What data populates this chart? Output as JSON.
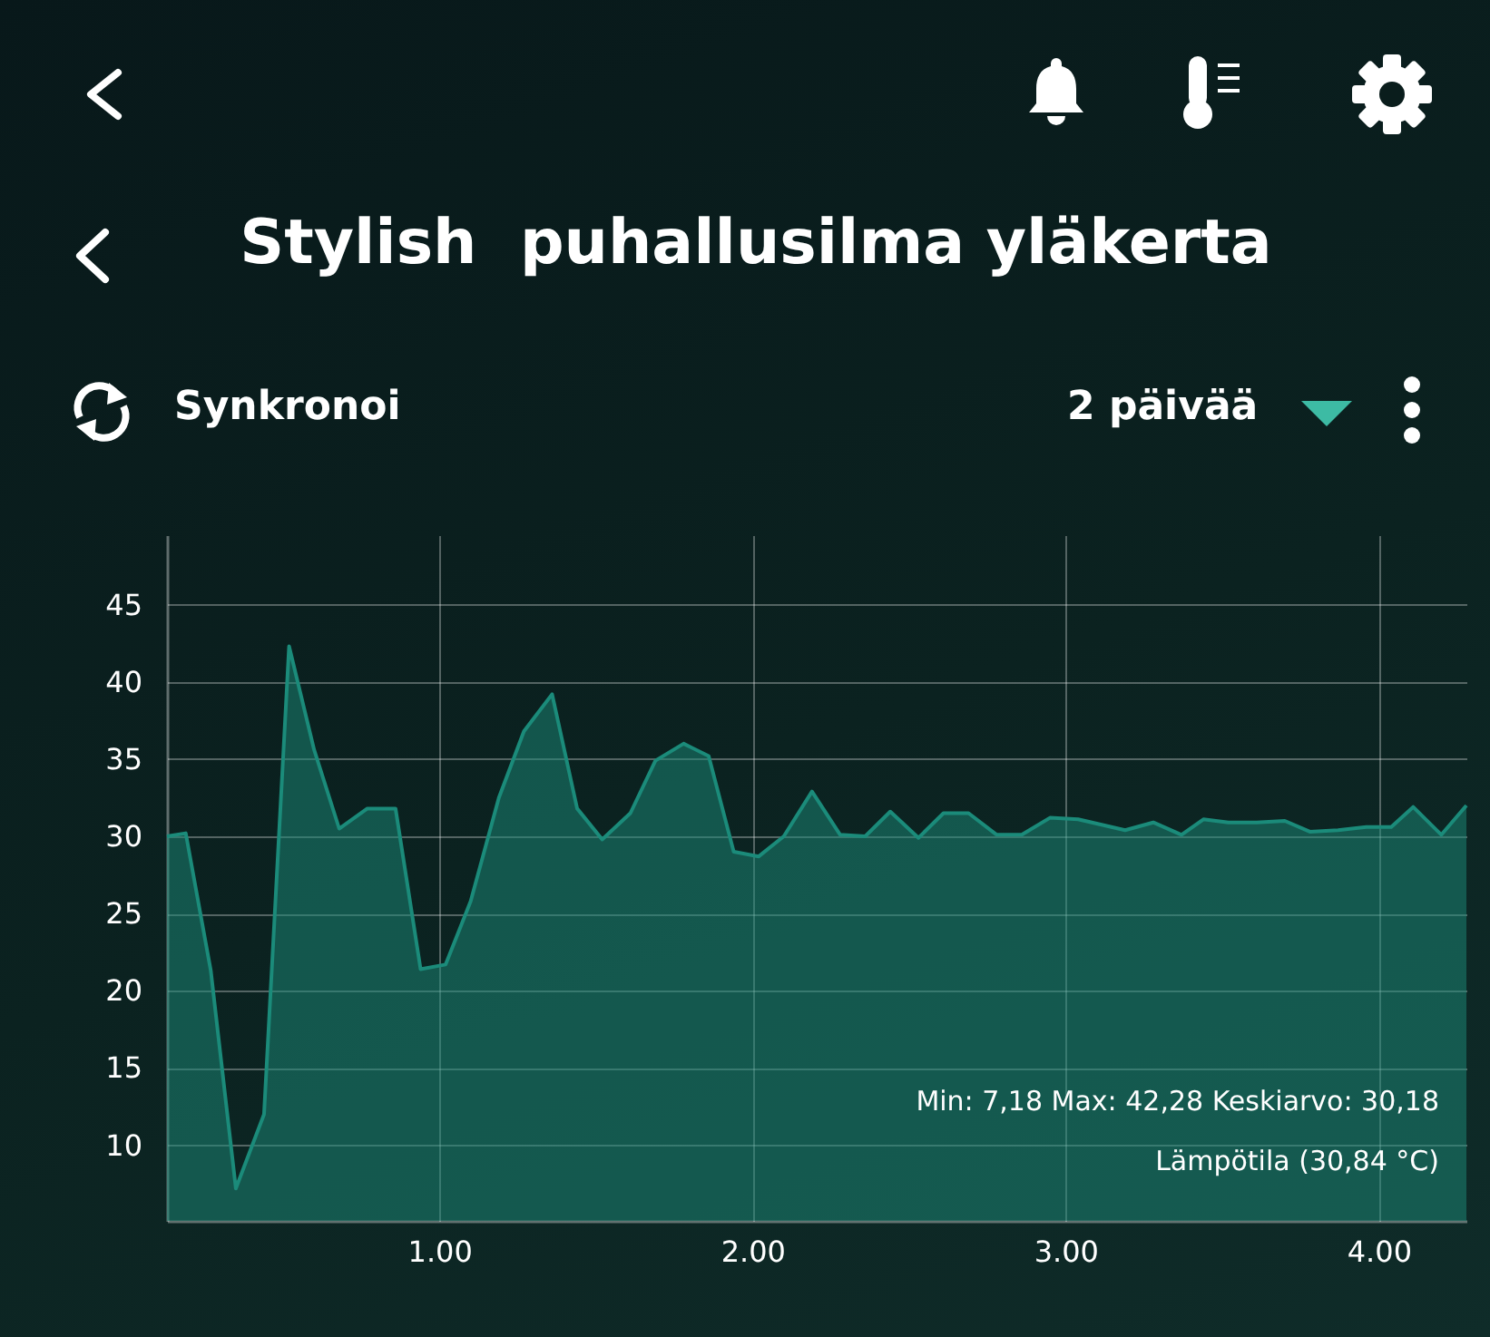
{
  "chart_data": {
    "type": "area",
    "title": "Stylish  puhallusilma yläkerta",
    "annotations": [
      "Synkronoi",
      "2 päivää",
      "Min: 7,18 Max: 42,28 Keskiarvo: 30,18",
      "Lämpötila (30,84 °C)"
    ],
    "x": [
      0.13,
      0.19,
      0.27,
      0.35,
      0.44,
      0.52,
      0.6,
      0.68,
      0.77,
      0.86,
      0.94,
      1.02,
      1.1,
      1.19,
      1.27,
      1.36,
      1.44,
      1.52,
      1.61,
      1.69,
      1.78,
      1.86,
      1.94,
      2.02,
      2.1,
      2.19,
      2.28,
      2.36,
      2.44,
      2.53,
      2.61,
      2.69,
      2.78,
      2.86,
      2.95,
      3.04,
      3.19,
      3.28,
      3.37,
      3.44,
      3.52,
      3.61,
      3.7,
      3.78,
      3.87,
      3.96,
      4.04,
      4.11,
      4.2,
      4.28
    ],
    "values": [
      30.0,
      30.2,
      21.3,
      7.2,
      12.0,
      42.3,
      35.6,
      30.5,
      31.8,
      31.8,
      21.4,
      21.7,
      25.8,
      32.5,
      36.8,
      39.2,
      31.8,
      29.8,
      31.5,
      34.9,
      36.0,
      35.2,
      29.0,
      28.7,
      30.0,
      32.9,
      30.1,
      30.0,
      31.6,
      29.9,
      31.5,
      31.5,
      30.1,
      30.1,
      31.2,
      31.1,
      30.4,
      30.9,
      30.1,
      31.1,
      30.9,
      30.9,
      31.0,
      30.3,
      30.4,
      30.6,
      30.6,
      31.9,
      30.1,
      32.0
    ],
    "color": "#1b8b7a",
    "xlim": [
      0.13,
      4.28
    ],
    "ylim": [
      5.1,
      49.5
    ],
    "xticks": [
      {
        "value": 1,
        "label": "1.00"
      },
      {
        "value": 2,
        "label": "2.00"
      },
      {
        "value": 3,
        "label": "3.00"
      },
      {
        "value": 4,
        "label": "4.00"
      }
    ],
    "yticks": [
      10,
      15,
      20,
      25,
      30,
      35,
      40,
      45
    ],
    "grid": true
  }
}
